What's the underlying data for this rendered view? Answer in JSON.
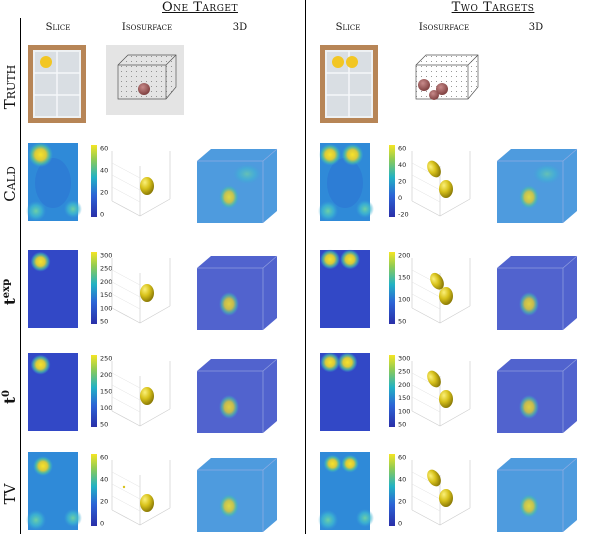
{
  "groups": [
    {
      "title": "One Target"
    },
    {
      "title": "Two Targets"
    }
  ],
  "columns": [
    "Slice",
    "Isosurface",
    "3D"
  ],
  "rows": [
    {
      "key": "truth",
      "label": "Truth"
    },
    {
      "key": "cald",
      "label": "Cald"
    },
    {
      "key": "texp",
      "label": "t",
      "sup": "exp"
    },
    {
      "key": "t0",
      "label": "t",
      "sup": "0"
    },
    {
      "key": "tv",
      "label": "TV"
    }
  ],
  "colorbars": {
    "cald_one": [
      "60",
      "40",
      "20",
      "0"
    ],
    "cald_two": [
      "60",
      "40",
      "20",
      "0",
      "-20"
    ],
    "texp_one": [
      "300",
      "250",
      "200",
      "150",
      "100",
      "50"
    ],
    "texp_two": [
      "200",
      "150",
      "100",
      "50"
    ],
    "t0_one": [
      "250",
      "200",
      "150",
      "100",
      "50"
    ],
    "t0_two": [
      "300",
      "250",
      "200",
      "150",
      "100",
      "50"
    ],
    "tv_one": [
      "60",
      "40",
      "20",
      "0"
    ],
    "tv_two": [
      "60",
      "40",
      "20",
      "0"
    ]
  },
  "colors": {
    "viridis_low": "#3b3fc8",
    "viridis_mid": "#22a4c8",
    "viridis_high": "#f5e22b",
    "gold": "#e9d21a"
  }
}
